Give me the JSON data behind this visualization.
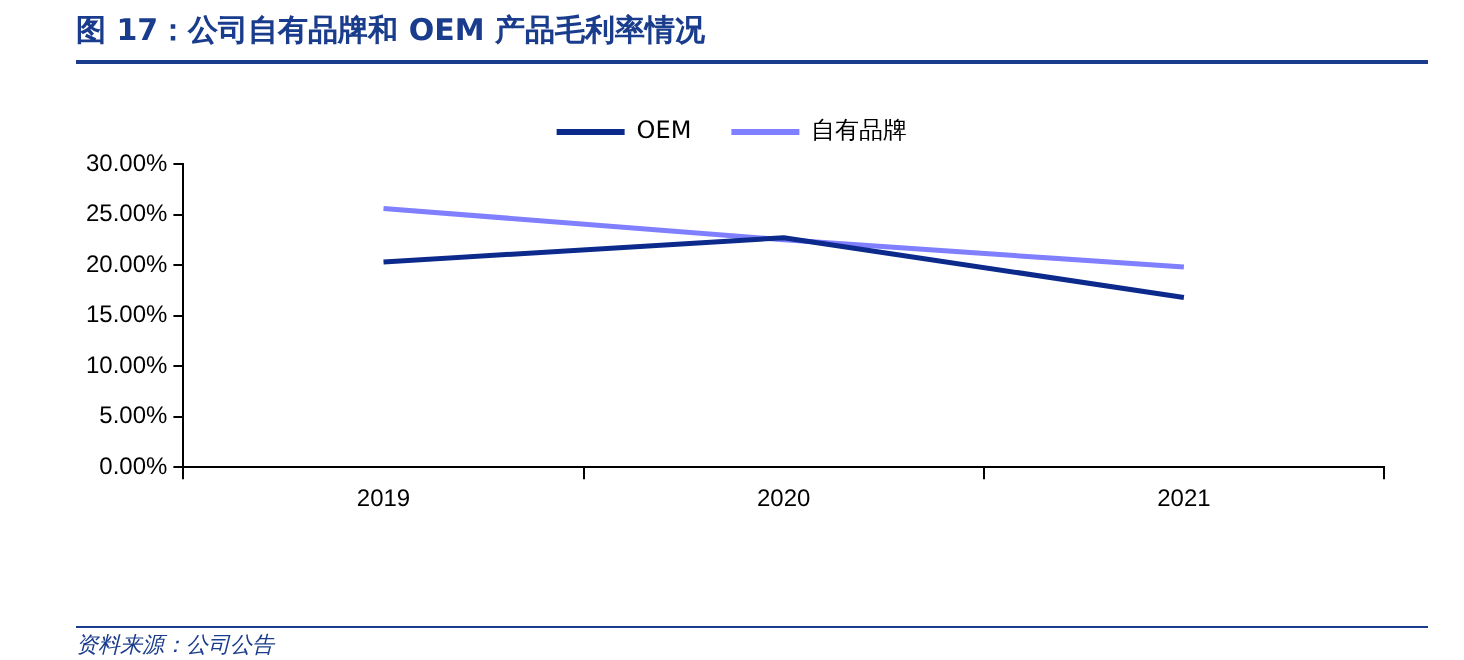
{
  "chart_data": {
    "type": "line",
    "title": "图 17：公司自有品牌和 OEM 产品毛利率情况",
    "categories": [
      "2019",
      "2020",
      "2021"
    ],
    "series": [
      {
        "name": "OEM",
        "color": "#0c2a8c",
        "values": [
          20.3,
          22.7,
          16.8
        ]
      },
      {
        "name": "自有品牌",
        "color": "#7f7fff",
        "values": [
          25.6,
          22.5,
          19.8
        ]
      }
    ],
    "ylim": [
      0,
      30
    ],
    "yticks": [
      {
        "value": 0,
        "label": "0.00%"
      },
      {
        "value": 5,
        "label": "5.00%"
      },
      {
        "value": 10,
        "label": "10.00%"
      },
      {
        "value": 15,
        "label": "15.00%"
      },
      {
        "value": 20,
        "label": "20.00%"
      },
      {
        "value": 25,
        "label": "25.00%"
      },
      {
        "value": 30,
        "label": "30.00%"
      }
    ],
    "grid": false,
    "legend": "top",
    "marker": "none",
    "line_style": "solid",
    "annotations": [
      "资料来源：公司公告"
    ]
  }
}
